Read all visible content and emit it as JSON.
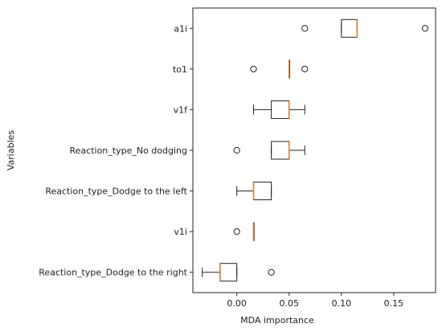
{
  "chart_data": {
    "type": "boxplot",
    "orientation": "horizontal",
    "xlabel": "MDA importance",
    "ylabel": "Variables",
    "xlim": [
      -0.042,
      0.19
    ],
    "xticks": [
      "0.00",
      "0.05",
      "0.10",
      "0.15"
    ],
    "xtick_values": [
      0.0,
      0.05,
      0.1,
      0.15
    ],
    "grid": false,
    "median_color": "#e07b2a",
    "box_color": "#222222",
    "categories": [
      "a1i",
      "to1",
      "v1f",
      "Reaction_type_No dodging",
      "Reaction_type_Dodge to the left",
      "v1i",
      "Reaction_type_Dodge to the right"
    ],
    "boxes": [
      {
        "whislo": 0.1,
        "q1": 0.1,
        "med": 0.115,
        "q3": 0.115,
        "whishi": 0.115,
        "fliers": [
          0.065,
          0.18
        ]
      },
      {
        "whislo": 0.05,
        "q1": 0.05,
        "med": 0.05,
        "q3": 0.05,
        "whishi": 0.05,
        "fliers": [
          0.016,
          0.065
        ]
      },
      {
        "whislo": 0.016,
        "q1": 0.033,
        "med": 0.05,
        "q3": 0.05,
        "whishi": 0.065,
        "fliers": []
      },
      {
        "whislo": 0.033,
        "q1": 0.033,
        "med": 0.05,
        "q3": 0.05,
        "whishi": 0.065,
        "fliers": [
          0.0
        ]
      },
      {
        "whislo": 0.0,
        "q1": 0.016,
        "med": 0.016,
        "q3": 0.033,
        "whishi": 0.033,
        "fliers": []
      },
      {
        "whislo": 0.016,
        "q1": 0.016,
        "med": 0.016,
        "q3": 0.016,
        "whishi": 0.016,
        "fliers": [
          0.0
        ]
      },
      {
        "whislo": -0.033,
        "q1": -0.016,
        "med": -0.016,
        "q3": 0.0,
        "whishi": 0.0,
        "fliers": [
          0.033
        ]
      }
    ]
  }
}
